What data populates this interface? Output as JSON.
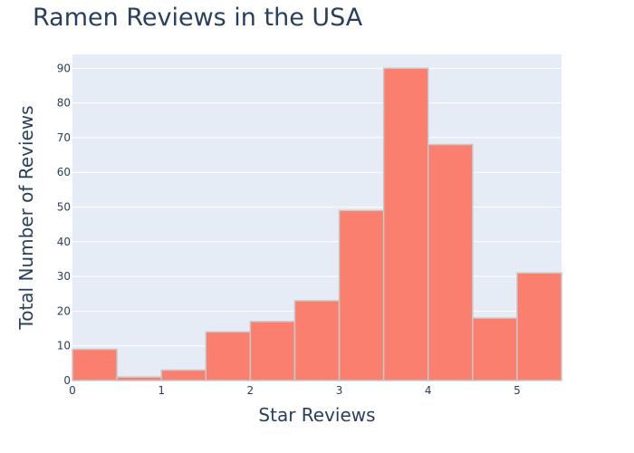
{
  "chart_data": {
    "type": "bar",
    "title": "Ramen Reviews in the USA",
    "xlabel": "Star Reviews",
    "ylabel": "Total Number of Reviews",
    "bin_width": 0.5,
    "bins": [
      {
        "start": 0,
        "end": 0.5,
        "value": 9
      },
      {
        "start": 0.5,
        "end": 1,
        "value": 1
      },
      {
        "start": 1,
        "end": 1.5,
        "value": 3
      },
      {
        "start": 1.5,
        "end": 2,
        "value": 14
      },
      {
        "start": 2,
        "end": 2.5,
        "value": 17
      },
      {
        "start": 2.5,
        "end": 3,
        "value": 23
      },
      {
        "start": 3,
        "end": 3.5,
        "value": 49
      },
      {
        "start": 3.5,
        "end": 4,
        "value": 90
      },
      {
        "start": 4,
        "end": 4.5,
        "value": 68
      },
      {
        "start": 4.5,
        "end": 5,
        "value": 18
      },
      {
        "start": 5,
        "end": 5.5,
        "value": 31
      }
    ],
    "xlim": [
      0,
      5.5
    ],
    "ylim": [
      0,
      94
    ],
    "xticks": [
      "0",
      "1",
      "2",
      "3",
      "4",
      "5"
    ],
    "yticks": [
      "0",
      "10",
      "20",
      "30",
      "40",
      "50",
      "60",
      "70",
      "80",
      "90"
    ],
    "grid": true,
    "colors": {
      "bar": "#fa7f6e",
      "bar_outline": "#c8c8c8",
      "plot_background": "#e5ecf6",
      "grid": "#ffffff",
      "text": "#2a3f5f"
    }
  }
}
